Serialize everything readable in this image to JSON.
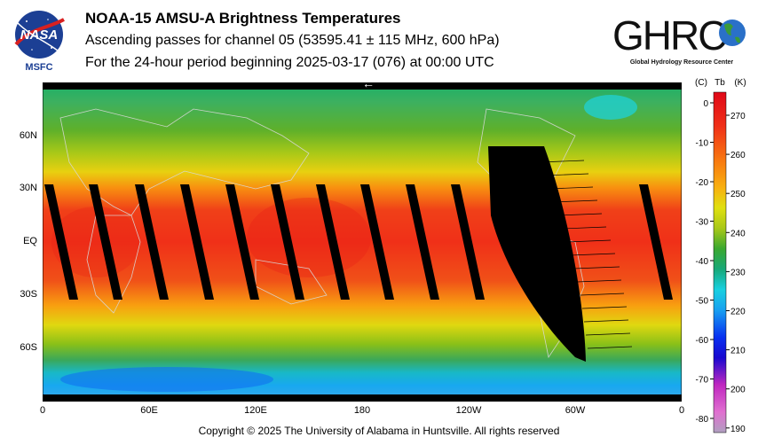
{
  "header": {
    "agency_logo_text": "NASA",
    "agency_center": "MSFC",
    "title": "NOAA-15 AMSU-A Brightness Temperatures",
    "subtitle": "Ascending passes for channel 05 (53595.41 ± 115 MHz, 600 hPa)",
    "period": "For the 24-hour period beginning 2025-03-17 (076) at 00:00 UTC"
  },
  "partner_logo": {
    "wordmark": "GHRC",
    "caption": "Global Hydrology Resource Center"
  },
  "map": {
    "direction_arrow": "←",
    "lon_ticks": [
      "0",
      "60E",
      "120E",
      "180",
      "120W",
      "60W",
      "0"
    ],
    "lat_ticks": [
      "60N",
      "30N",
      "EQ",
      "30S",
      "60S"
    ],
    "colors": {
      "polar_cold": "#18c0e8",
      "mid_lat": "#7ab818",
      "subtropic": "#d8d810",
      "warm": "#f89010",
      "tropics": "#f02818",
      "gap": "#000000",
      "coast": "#d8d8d8"
    }
  },
  "colorbar": {
    "header_c": "(C)",
    "header_tb": "Tb",
    "header_k": "(K)",
    "celsius_ticks": [
      "0",
      "-10",
      "-20",
      "-30",
      "-40",
      "-50",
      "-60",
      "-70",
      "-80"
    ],
    "kelvin_ticks": [
      "270",
      "260",
      "250",
      "240",
      "230",
      "220",
      "210",
      "200",
      "190"
    ]
  },
  "footer": {
    "copyright": "Copyright © 2025 The University of Alabama in Huntsville.  All rights reserved"
  }
}
